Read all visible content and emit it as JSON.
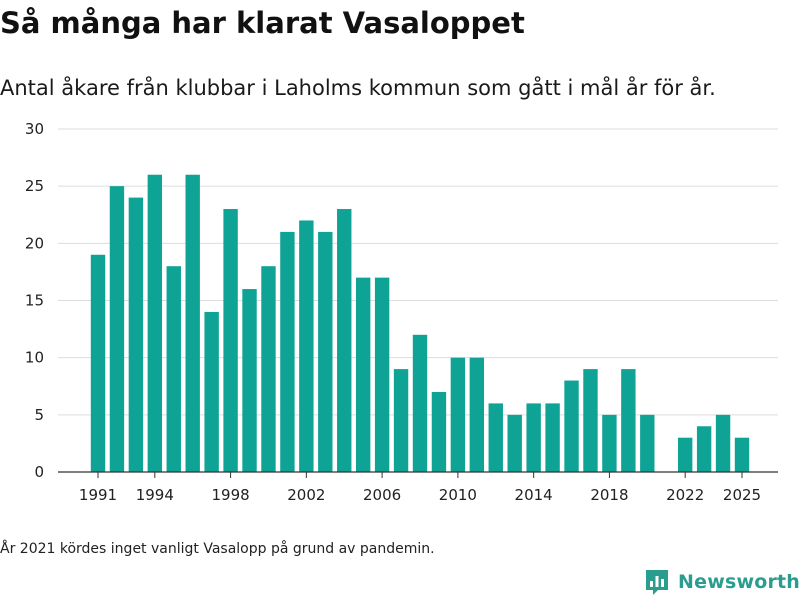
{
  "header": {
    "title": "Så många har klarat Vasaloppet",
    "subtitle": "Antal åkare från klubbar i Laholms kommun som gått i mål år för år."
  },
  "footnote": "År 2021 kördes inget vanligt Vasalopp på grund av pandemin.",
  "brand": {
    "name": "Newsworthy",
    "icon": "newsworthy-logo-icon",
    "color": "#2a9d8f"
  },
  "colors": {
    "bar": "#0fa396",
    "grid": "#dddddd",
    "axis": "#333333"
  },
  "chart_data": {
    "type": "bar",
    "title": "Så många har klarat Vasaloppet",
    "xlabel": "",
    "ylabel": "",
    "ylim": [
      0,
      30
    ],
    "yticks": [
      0,
      5,
      10,
      15,
      20,
      25,
      30
    ],
    "xticks": [
      1991,
      1994,
      1998,
      2002,
      2006,
      2010,
      2014,
      2018,
      2022,
      2025
    ],
    "grid": true,
    "categories": [
      1991,
      1992,
      1993,
      1994,
      1995,
      1996,
      1997,
      1998,
      1999,
      2000,
      2001,
      2002,
      2003,
      2004,
      2005,
      2006,
      2007,
      2008,
      2009,
      2010,
      2011,
      2012,
      2013,
      2014,
      2015,
      2016,
      2017,
      2018,
      2019,
      2020,
      2022,
      2023,
      2024,
      2025
    ],
    "values": [
      19,
      25,
      24,
      26,
      18,
      26,
      14,
      23,
      16,
      18,
      21,
      22,
      21,
      23,
      17,
      17,
      9,
      12,
      7,
      10,
      10,
      6,
      5,
      6,
      6,
      8,
      9,
      5,
      9,
      5,
      3,
      4,
      5,
      3
    ]
  }
}
